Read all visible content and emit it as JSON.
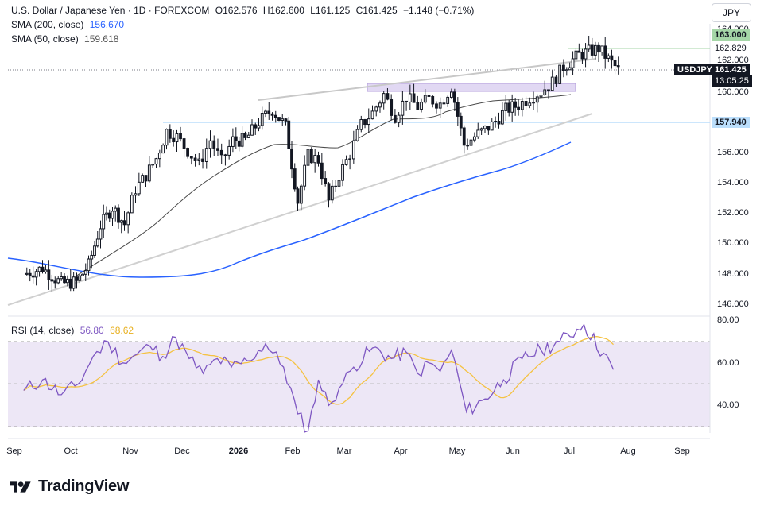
{
  "header": {
    "symbol_title": "U.S. Dollar / Japanese Yen · 1D · FOREXCOM",
    "ohlc": {
      "open": "O162.576",
      "high": "H162.600",
      "low": "L161.125",
      "close": "C161.425",
      "change": "−1.148 (−0.71%)"
    },
    "sma200": {
      "label": "SMA (200, close)",
      "value": "156.670"
    },
    "sma50": {
      "label": "SMA (50, close)",
      "value": "159.618"
    },
    "currency": "JPY"
  },
  "price_tags": {
    "upper_level": "163.000",
    "high_level": "162.829",
    "symbol": "USDJPY",
    "last_price": "161.425",
    "countdown": "13:05:25",
    "support_level": "157.940"
  },
  "rsi": {
    "label": "RSI (14, close)",
    "value": "56.80",
    "ma_value": "68.62"
  },
  "brand": {
    "name": "TradingView"
  },
  "colors": {
    "sma200": "#2962ff",
    "sma50": "#4a4a4a",
    "rsi": "#7e57c2",
    "rsi_ma": "#f5c242",
    "candle": "#131722",
    "rsi_band": "#ede7f6",
    "resistance_zone": "#e1d8f3",
    "trendline": "#c8c8c8"
  },
  "chart_data": [
    {
      "type": "candlestick",
      "title": "U.S. Dollar / Japanese Yen · 1D · FOREXCOM",
      "x_tick_labels": [
        "Sep",
        "Oct",
        "Nov",
        "Dec",
        "2026",
        "Feb",
        "Mar",
        "Apr",
        "May",
        "Jun",
        "Jul",
        "Aug",
        "Sep"
      ],
      "y_tick_labels": [
        "146.000",
        "148.000",
        "150.000",
        "152.000",
        "154.000",
        "156.000",
        "160.000",
        "162.000",
        "164.000"
      ],
      "ylim": [
        145.3,
        164.3
      ],
      "close_path": [
        [
          "Sep",
          148.0
        ],
        [
          "Sep",
          148.4
        ],
        [
          "Sep",
          147.4
        ],
        [
          "Oct",
          147.5
        ],
        [
          "Oct",
          148.6
        ],
        [
          "Oct",
          151.2
        ],
        [
          "Oct",
          152.4
        ],
        [
          "Oct",
          151.3
        ],
        [
          "Nov",
          153.6
        ],
        [
          "Nov",
          154.5
        ],
        [
          "Nov",
          155.6
        ],
        [
          "Nov",
          157.4
        ],
        [
          "Nov",
          157.0
        ],
        [
          "Dec",
          156.1
        ],
        [
          "Dec",
          155.2
        ],
        [
          "Dec",
          156.8
        ],
        [
          "Dec",
          155.4
        ],
        [
          "Dec",
          156.8
        ],
        [
          "2026",
          156.8
        ],
        [
          "2026",
          158.0
        ],
        [
          "2026",
          158.8
        ],
        [
          "2026",
          157.7
        ],
        [
          "Feb",
          152.8
        ],
        [
          "Feb",
          155.8
        ],
        [
          "Feb",
          155.5
        ],
        [
          "Feb",
          152.8
        ],
        [
          "Feb",
          154.5
        ],
        [
          "Mar",
          155.9
        ],
        [
          "Mar",
          157.8
        ],
        [
          "Mar",
          158.6
        ],
        [
          "Mar",
          159.8
        ],
        [
          "Mar",
          158.4
        ],
        [
          "Apr",
          159.6
        ],
        [
          "Apr",
          159.0
        ],
        [
          "Apr",
          159.5
        ],
        [
          "Apr",
          159.2
        ],
        [
          "Apr",
          160.3
        ],
        [
          "May",
          156.5
        ],
        [
          "May",
          157.2
        ],
        [
          "May",
          157.8
        ],
        [
          "May",
          158.8
        ],
        [
          "Jun",
          159.1
        ],
        [
          "Jun",
          159.6
        ],
        [
          "Jun",
          160.0
        ],
        [
          "Jun",
          160.6
        ],
        [
          "Jun",
          161.6
        ],
        [
          "Jul",
          162.4
        ],
        [
          "Jul",
          162.8
        ],
        [
          "Jul",
          161.4
        ]
      ],
      "series": [
        {
          "name": "SMA (200, close)",
          "last_value": 156.67
        },
        {
          "name": "SMA (50, close)",
          "last_value": 159.618
        }
      ],
      "levels": [
        {
          "value": 163.0
        },
        {
          "value": 162.829
        },
        {
          "value": 157.94
        }
      ],
      "resistance_zone": [
        159.95,
        160.5
      ],
      "last_price": 161.425
    },
    {
      "type": "line",
      "title": "RSI (14, close)",
      "y_tick_labels": [
        "40.00",
        "60.00",
        "80.00"
      ],
      "ylim": [
        26,
        80
      ],
      "band": [
        30,
        70
      ],
      "midline": 50,
      "series": [
        {
          "name": "RSI (14, close)",
          "points": [
            [
              "Sep",
              47
            ],
            [
              "Sep",
              52
            ],
            [
              "Sep",
              45
            ],
            [
              "Oct",
              50
            ],
            [
              "Oct",
              63
            ],
            [
              "Oct",
              70
            ],
            [
              "Oct",
              60
            ],
            [
              "Nov",
              64
            ],
            [
              "Nov",
              68
            ],
            [
              "Nov",
              63
            ],
            [
              "Nov",
              72
            ],
            [
              "Dec",
              62
            ],
            [
              "Dec",
              55
            ],
            [
              "Dec",
              62
            ],
            [
              "Dec",
              58
            ],
            [
              "2026",
              61
            ],
            [
              "2026",
              69
            ],
            [
              "2026",
              58
            ],
            [
              "Feb",
              36
            ],
            [
              "Feb",
              28
            ],
            [
              "Feb",
              52
            ],
            [
              "Feb",
              40
            ],
            [
              "Feb",
              48
            ],
            [
              "Mar",
              58
            ],
            [
              "Mar",
              67
            ],
            [
              "Mar",
              62
            ],
            [
              "Apr",
              65
            ],
            [
              "Apr",
              55
            ],
            [
              "Apr",
              60
            ],
            [
              "Apr",
              56
            ],
            [
              "Apr",
              66
            ],
            [
              "May",
              37
            ],
            [
              "May",
              43
            ],
            [
              "May",
              52
            ],
            [
              "Jun",
              62
            ],
            [
              "Jun",
              66
            ],
            [
              "Jun",
              70
            ],
            [
              "Jul",
              78
            ],
            [
              "Jul",
              56.8
            ]
          ],
          "last_value": 56.8
        },
        {
          "name": "RSI-based MA",
          "last_value": 68.62
        }
      ]
    }
  ]
}
